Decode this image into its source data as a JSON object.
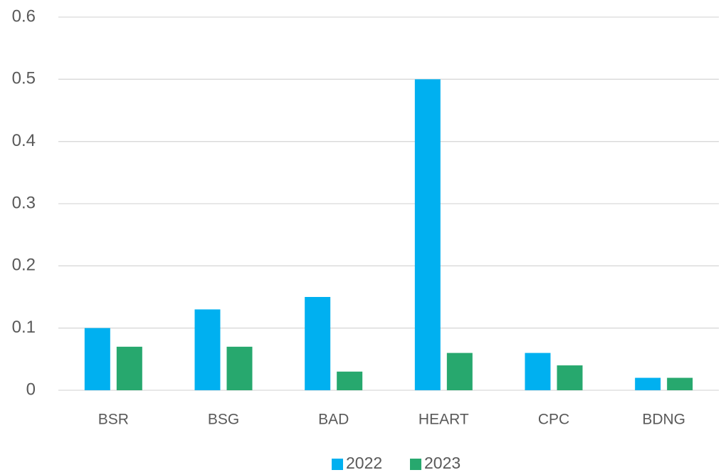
{
  "chart_data": {
    "type": "bar",
    "categories": [
      "BSR",
      "BSG",
      "BAD",
      "HEART",
      "CPC",
      "BDNG"
    ],
    "series": [
      {
        "name": "2022",
        "color": "#00b0f0",
        "values": [
          0.1,
          0.13,
          0.15,
          0.5,
          0.06,
          0.02
        ]
      },
      {
        "name": "2023",
        "color": "#27a86e",
        "values": [
          0.07,
          0.07,
          0.03,
          0.06,
          0.04,
          0.02
        ]
      }
    ],
    "ylim": [
      0,
      0.6
    ],
    "yticks": [
      0,
      0.1,
      0.2,
      0.3,
      0.4,
      0.5,
      0.6
    ],
    "grid": true,
    "legend": "bottom"
  }
}
